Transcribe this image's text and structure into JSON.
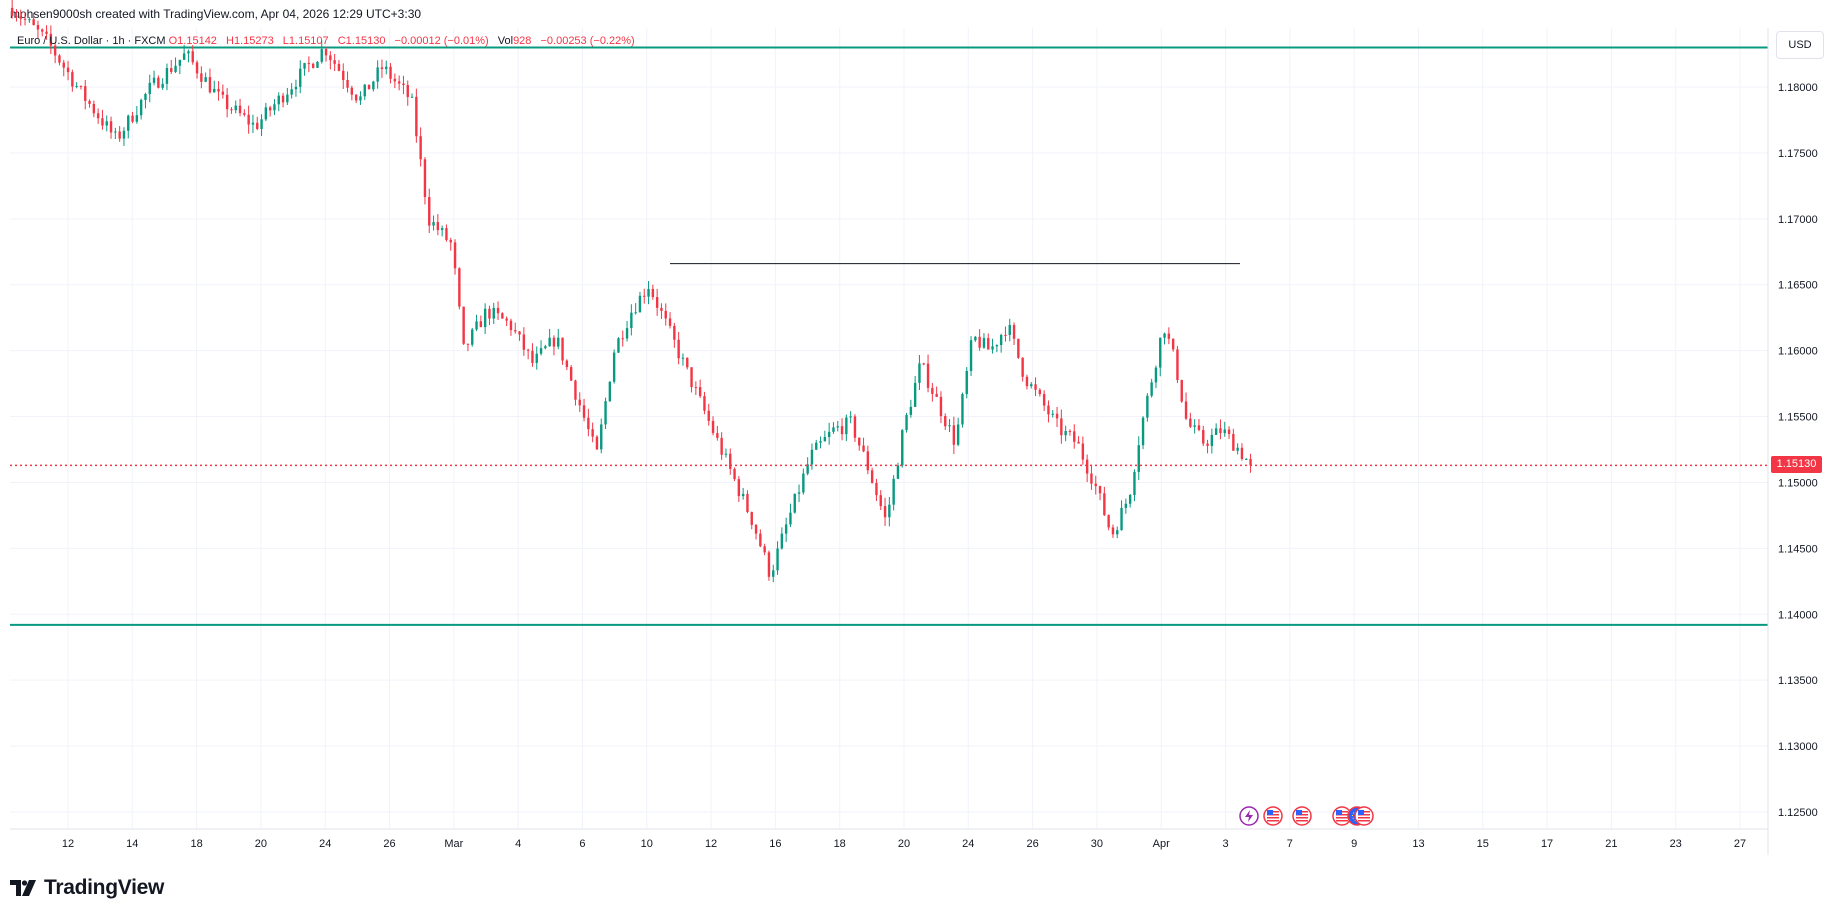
{
  "header": {
    "credit": "mohsen9000sh created with TradingView.com, Apr 04, 2026 12:29 UTC+3:30"
  },
  "legend": {
    "symbol": "Euro / U.S. Dollar · 1h · FXCM",
    "open": "O1.15142",
    "high": "H1.15273",
    "low": "L1.15107",
    "close": "C1.15130",
    "change": "−0.00012 (−0.01%)",
    "vol_label": "Vol",
    "vol_value": "928",
    "vol_change": "−0.00253 (−0.22%)"
  },
  "toolbar": {
    "currency": "USD"
  },
  "last_price": "1.15130",
  "brand": {
    "name": "TradingView"
  },
  "colors": {
    "up": "#089981",
    "down": "#f23645",
    "level_line": "#089981",
    "grid": "#f0f3fa",
    "trendline": "#131722",
    "price_tag": "#f23645"
  },
  "event_icons": [
    "lightning-icon",
    "us-flag-icon",
    "us-flag-icon",
    "us-flag-icon",
    "eu-flag-icon",
    "us-flag-icon"
  ],
  "chart_data": {
    "type": "candlestick",
    "y_axis": {
      "ticks": [
        "1.18000",
        "1.17500",
        "1.17000",
        "1.16500",
        "1.16000",
        "1.15500",
        "1.15000",
        "1.14500",
        "1.14000",
        "1.13500",
        "1.13000",
        "1.12500"
      ],
      "range": [
        1.1215,
        1.1855
      ]
    },
    "x_axis": {
      "ticks": [
        "12",
        "14",
        "18",
        "20",
        "24",
        "26",
        "Mar",
        "4",
        "6",
        "10",
        "12",
        "16",
        "18",
        "20",
        "24",
        "26",
        "30",
        "Apr",
        "3",
        "7",
        "9",
        "13",
        "15",
        "17",
        "21",
        "23",
        "27"
      ]
    },
    "horizontal_levels": [
      1.183,
      1.1392
    ],
    "trendline": {
      "price": 1.1666,
      "from": "Mar 11",
      "to": "Apr 4"
    },
    "last_price_line": 1.1513,
    "price_path": [
      [
        0,
        1.186
      ],
      [
        0.03,
        1.1835
      ],
      [
        0.06,
        1.1795
      ],
      [
        0.09,
        1.176
      ],
      [
        0.12,
        1.18
      ],
      [
        0.15,
        1.1825
      ],
      [
        0.18,
        1.179
      ],
      [
        0.21,
        1.177
      ],
      [
        0.24,
        1.18
      ],
      [
        0.27,
        1.183
      ],
      [
        0.3,
        1.179
      ],
      [
        0.32,
        1.1815
      ],
      [
        0.345,
        1.179
      ],
      [
        0.36,
        1.17
      ],
      [
        0.38,
        1.168
      ],
      [
        0.39,
        1.16
      ],
      [
        0.41,
        1.163
      ],
      [
        0.43,
        1.162
      ],
      [
        0.45,
        1.159
      ],
      [
        0.47,
        1.161
      ],
      [
        0.49,
        1.156
      ],
      [
        0.505,
        1.152
      ],
      [
        0.52,
        1.16
      ],
      [
        0.535,
        1.163
      ],
      [
        0.55,
        1.165
      ],
      [
        0.565,
        1.162
      ],
      [
        0.58,
        1.159
      ],
      [
        0.6,
        1.155
      ],
      [
        0.62,
        1.151
      ],
      [
        0.64,
        1.147
      ],
      [
        0.655,
        1.143
      ],
      [
        0.67,
        1.147
      ],
      [
        0.69,
        1.152
      ],
      [
        0.71,
        1.154
      ],
      [
        0.725,
        1.1545
      ],
      [
        0.74,
        1.151
      ],
      [
        0.755,
        1.147
      ],
      [
        0.77,
        1.154
      ],
      [
        0.785,
        1.159
      ],
      [
        0.8,
        1.156
      ],
      [
        0.815,
        1.153
      ],
      [
        0.83,
        1.161
      ],
      [
        0.845,
        1.16
      ],
      [
        0.86,
        1.162
      ],
      [
        0.875,
        1.158
      ],
      [
        0.89,
        1.156
      ],
      [
        0.905,
        1.154
      ],
      [
        0.92,
        1.153
      ],
      [
        0.935,
        1.15
      ],
      [
        0.95,
        1.146
      ],
      [
        0.965,
        1.149
      ],
      [
        0.975,
        1.154
      ],
      [
        0.985,
        1.158
      ],
      [
        0.995,
        1.162
      ],
      [
        1.005,
        1.159
      ],
      [
        1.015,
        1.1545
      ],
      [
        1.03,
        1.153
      ],
      [
        1.045,
        1.154
      ],
      [
        1.06,
        1.1525
      ],
      [
        1.07,
        1.1513
      ]
    ]
  }
}
